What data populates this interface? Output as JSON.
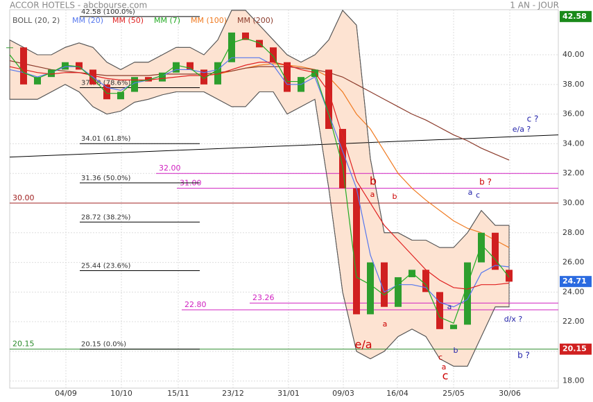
{
  "chart_data": {
    "type": "candlestick",
    "title": "ACCOR HOTELS - abcbourse.com",
    "subtitle": "1 AN - JOUR",
    "x": [
      0,
      1,
      2,
      3,
      4,
      5,
      6,
      7,
      8,
      9,
      10,
      11,
      12,
      13,
      14,
      15,
      16,
      17,
      18,
      19,
      20,
      21,
      22,
      23,
      24,
      25,
      26,
      27,
      28,
      29,
      30,
      31,
      32,
      33,
      34,
      35,
      36
    ],
    "xlim": [
      0,
      39.55
    ],
    "xticks": [
      {
        "value": 4.05,
        "label": "04/09"
      },
      {
        "value": 8.05,
        "label": "10/10"
      },
      {
        "value": 12.15,
        "label": "15/11"
      },
      {
        "value": 16.1,
        "label": "23/12"
      },
      {
        "value": 20.1,
        "label": "31/01"
      },
      {
        "value": 24.05,
        "label": "09/03"
      },
      {
        "value": 27.95,
        "label": "16/04"
      },
      {
        "value": 32,
        "label": "25/05"
      },
      {
        "value": 36.05,
        "label": "30/06"
      }
    ],
    "ylim": [
      17.52,
      43.04
    ],
    "yticks": [
      {
        "value": 18,
        "label": "18.00"
      },
      {
        "value": 20,
        "label": "20.00"
      },
      {
        "value": 22,
        "label": "22.00"
      },
      {
        "value": 24,
        "label": "24.00"
      },
      {
        "value": 26,
        "label": "26.00"
      },
      {
        "value": 28,
        "label": "28.00"
      },
      {
        "value": 30,
        "label": "30.00"
      },
      {
        "value": 32,
        "label": "32.00"
      },
      {
        "value": 34,
        "label": "34.00"
      },
      {
        "value": 36,
        "label": "36.00"
      },
      {
        "value": 38,
        "label": "38.00"
      },
      {
        "value": 40,
        "label": "40.00"
      }
    ],
    "grid": true,
    "close": [
      40.5,
      38,
      38.5,
      39,
      39.5,
      39,
      38,
      37,
      37.5,
      38.5,
      38.2,
      38.8,
      39.5,
      39,
      38,
      39.5,
      41.5,
      41,
      40.5,
      39.5,
      37.5,
      38.5,
      39,
      35,
      31,
      22.5,
      26,
      23,
      25,
      25.5,
      24,
      21.5,
      21.8,
      26,
      28,
      25.5,
      24.7
    ],
    "up_color": "#2e9e2e",
    "down_color": "#d02020",
    "bands": {
      "name": "BOLL (20, 2)",
      "color": "#555555",
      "fill": "#fde3d2",
      "upper": [
        41,
        40.5,
        40,
        40,
        40.5,
        40.8,
        40.5,
        39.5,
        39,
        39.5,
        39.5,
        40,
        40.5,
        40.5,
        40,
        41,
        43,
        43,
        42,
        41,
        40,
        39.5,
        40,
        41,
        43,
        42,
        33,
        28,
        28,
        27.5,
        27.5,
        27,
        27,
        28,
        29.5,
        28.5,
        28.5
      ],
      "lower": [
        37,
        37,
        37,
        37.5,
        38,
        37.5,
        36.5,
        36,
        36.2,
        36.8,
        37,
        37.3,
        37.5,
        37.5,
        37.5,
        37,
        36.5,
        36.5,
        37.5,
        37.5,
        36,
        36.5,
        37,
        31,
        24,
        20,
        19.5,
        20,
        21,
        21.5,
        21,
        19.5,
        19,
        19,
        21,
        23,
        23
      ]
    },
    "series": [
      {
        "name": "MM (20)",
        "color": "#5577ee",
        "values": [
          39,
          38.8,
          38.5,
          38.8,
          39.2,
          39.2,
          38.5,
          37.8,
          37.6,
          38.1,
          38.3,
          38.6,
          39,
          39,
          38.8,
          39,
          39.8,
          39.8,
          39.8,
          39.3,
          38,
          38,
          38.5,
          36,
          33.5,
          31,
          26.5,
          24,
          24.5,
          24.5,
          24.3,
          23.3,
          23,
          23.5,
          25.3,
          25.8,
          25.7
        ]
      },
      {
        "name": "MM (50)",
        "color": "#e02020",
        "values": [
          39.2,
          39,
          38.8,
          38.7,
          38.8,
          38.8,
          38.6,
          38.4,
          38.3,
          38.3,
          38.3,
          38.4,
          38.5,
          38.6,
          38.6,
          38.7,
          39,
          39.3,
          39.5,
          39.5,
          39.3,
          39,
          38.8,
          37.5,
          34.5,
          31.5,
          30,
          28.5,
          27.5,
          26.5,
          25.5,
          24.8,
          24.3,
          24.2,
          24.5,
          24.5,
          24.6
        ]
      },
      {
        "name": "MM (7)",
        "color": "#22aa22",
        "values": [
          40,
          38.8,
          38.4,
          38.8,
          39.3,
          39.2,
          38.4,
          37.4,
          37.4,
          38.2,
          38.3,
          38.6,
          39.3,
          39.1,
          38.4,
          39,
          40.8,
          41.1,
          40.8,
          39.9,
          38.2,
          38.2,
          38.8,
          36,
          32.5,
          25,
          24.5,
          23.8,
          24.5,
          25.3,
          24.5,
          22.3,
          21.9,
          24.5,
          27.2,
          26.2,
          25
        ]
      },
      {
        "name": "MM (100)",
        "color": "#f07a20",
        "values": [
          null,
          null,
          null,
          null,
          null,
          null,
          null,
          null,
          null,
          null,
          null,
          null,
          null,
          null,
          38.6,
          38.7,
          38.9,
          39.1,
          39.3,
          39.4,
          39.3,
          39.2,
          39,
          38.5,
          37.5,
          36,
          35,
          33.5,
          32,
          31,
          30.2,
          29.5,
          28.8,
          28.3,
          28,
          27.5,
          27
        ]
      },
      {
        "name": "MM (200)",
        "color": "#8b3a2a",
        "values": [
          39.6,
          39.4,
          39.2,
          39,
          38.9,
          38.8,
          38.7,
          38.6,
          38.6,
          38.6,
          38.6,
          38.7,
          38.7,
          38.7,
          38.7,
          38.8,
          38.9,
          39.1,
          39.2,
          39.2,
          39.2,
          39.1,
          39,
          38.8,
          38.5,
          38,
          37.5,
          37,
          36.5,
          36,
          35.6,
          35.1,
          34.6,
          34.2,
          33.7,
          33.3,
          32.9
        ]
      }
    ],
    "fibonacci": [
      {
        "value": 42.58,
        "label": "42.58 (100.0%)"
      },
      {
        "value": 37.78,
        "label": "37.78 (78.6%)"
      },
      {
        "value": 34.01,
        "label": "34.01 (61.8%)"
      },
      {
        "value": 31.36,
        "label": "31.36 (50.0%)"
      },
      {
        "value": 28.72,
        "label": "28.72 (38.2%)"
      },
      {
        "value": 25.44,
        "label": "25.44 (23.6%)"
      },
      {
        "value": 20.15,
        "label": "20.15 (0.0%)"
      }
    ],
    "levels": [
      {
        "value": 30,
        "label": "30.00",
        "color": "#a02020"
      },
      {
        "value": 20.15,
        "color": "#2a8a2a"
      },
      {
        "value": 32,
        "label": "32.00",
        "color": "#d020c0"
      },
      {
        "value": 31,
        "label": "31.00",
        "color": "#d020c0"
      },
      {
        "value": 23.26,
        "color": "#d020c0"
      },
      {
        "value": 22.8,
        "label": "22.80",
        "color": "#d020c0"
      }
    ],
    "trendline": [
      33.1,
      34.6
    ],
    "price_labels": [
      {
        "value": 42.58,
        "color": "#1a8a1a"
      },
      {
        "value": 24.71,
        "color": "#2a6ae0"
      },
      {
        "value": 20.15,
        "color": "#d02020"
      }
    ],
    "annotations": [
      "b",
      "a",
      "b",
      "a",
      "e/a",
      "a",
      "b",
      "c",
      "a",
      "c",
      "a",
      "c",
      "b ?",
      "c ?",
      "e/a ?",
      "d/x ?",
      "b ?"
    ]
  }
}
